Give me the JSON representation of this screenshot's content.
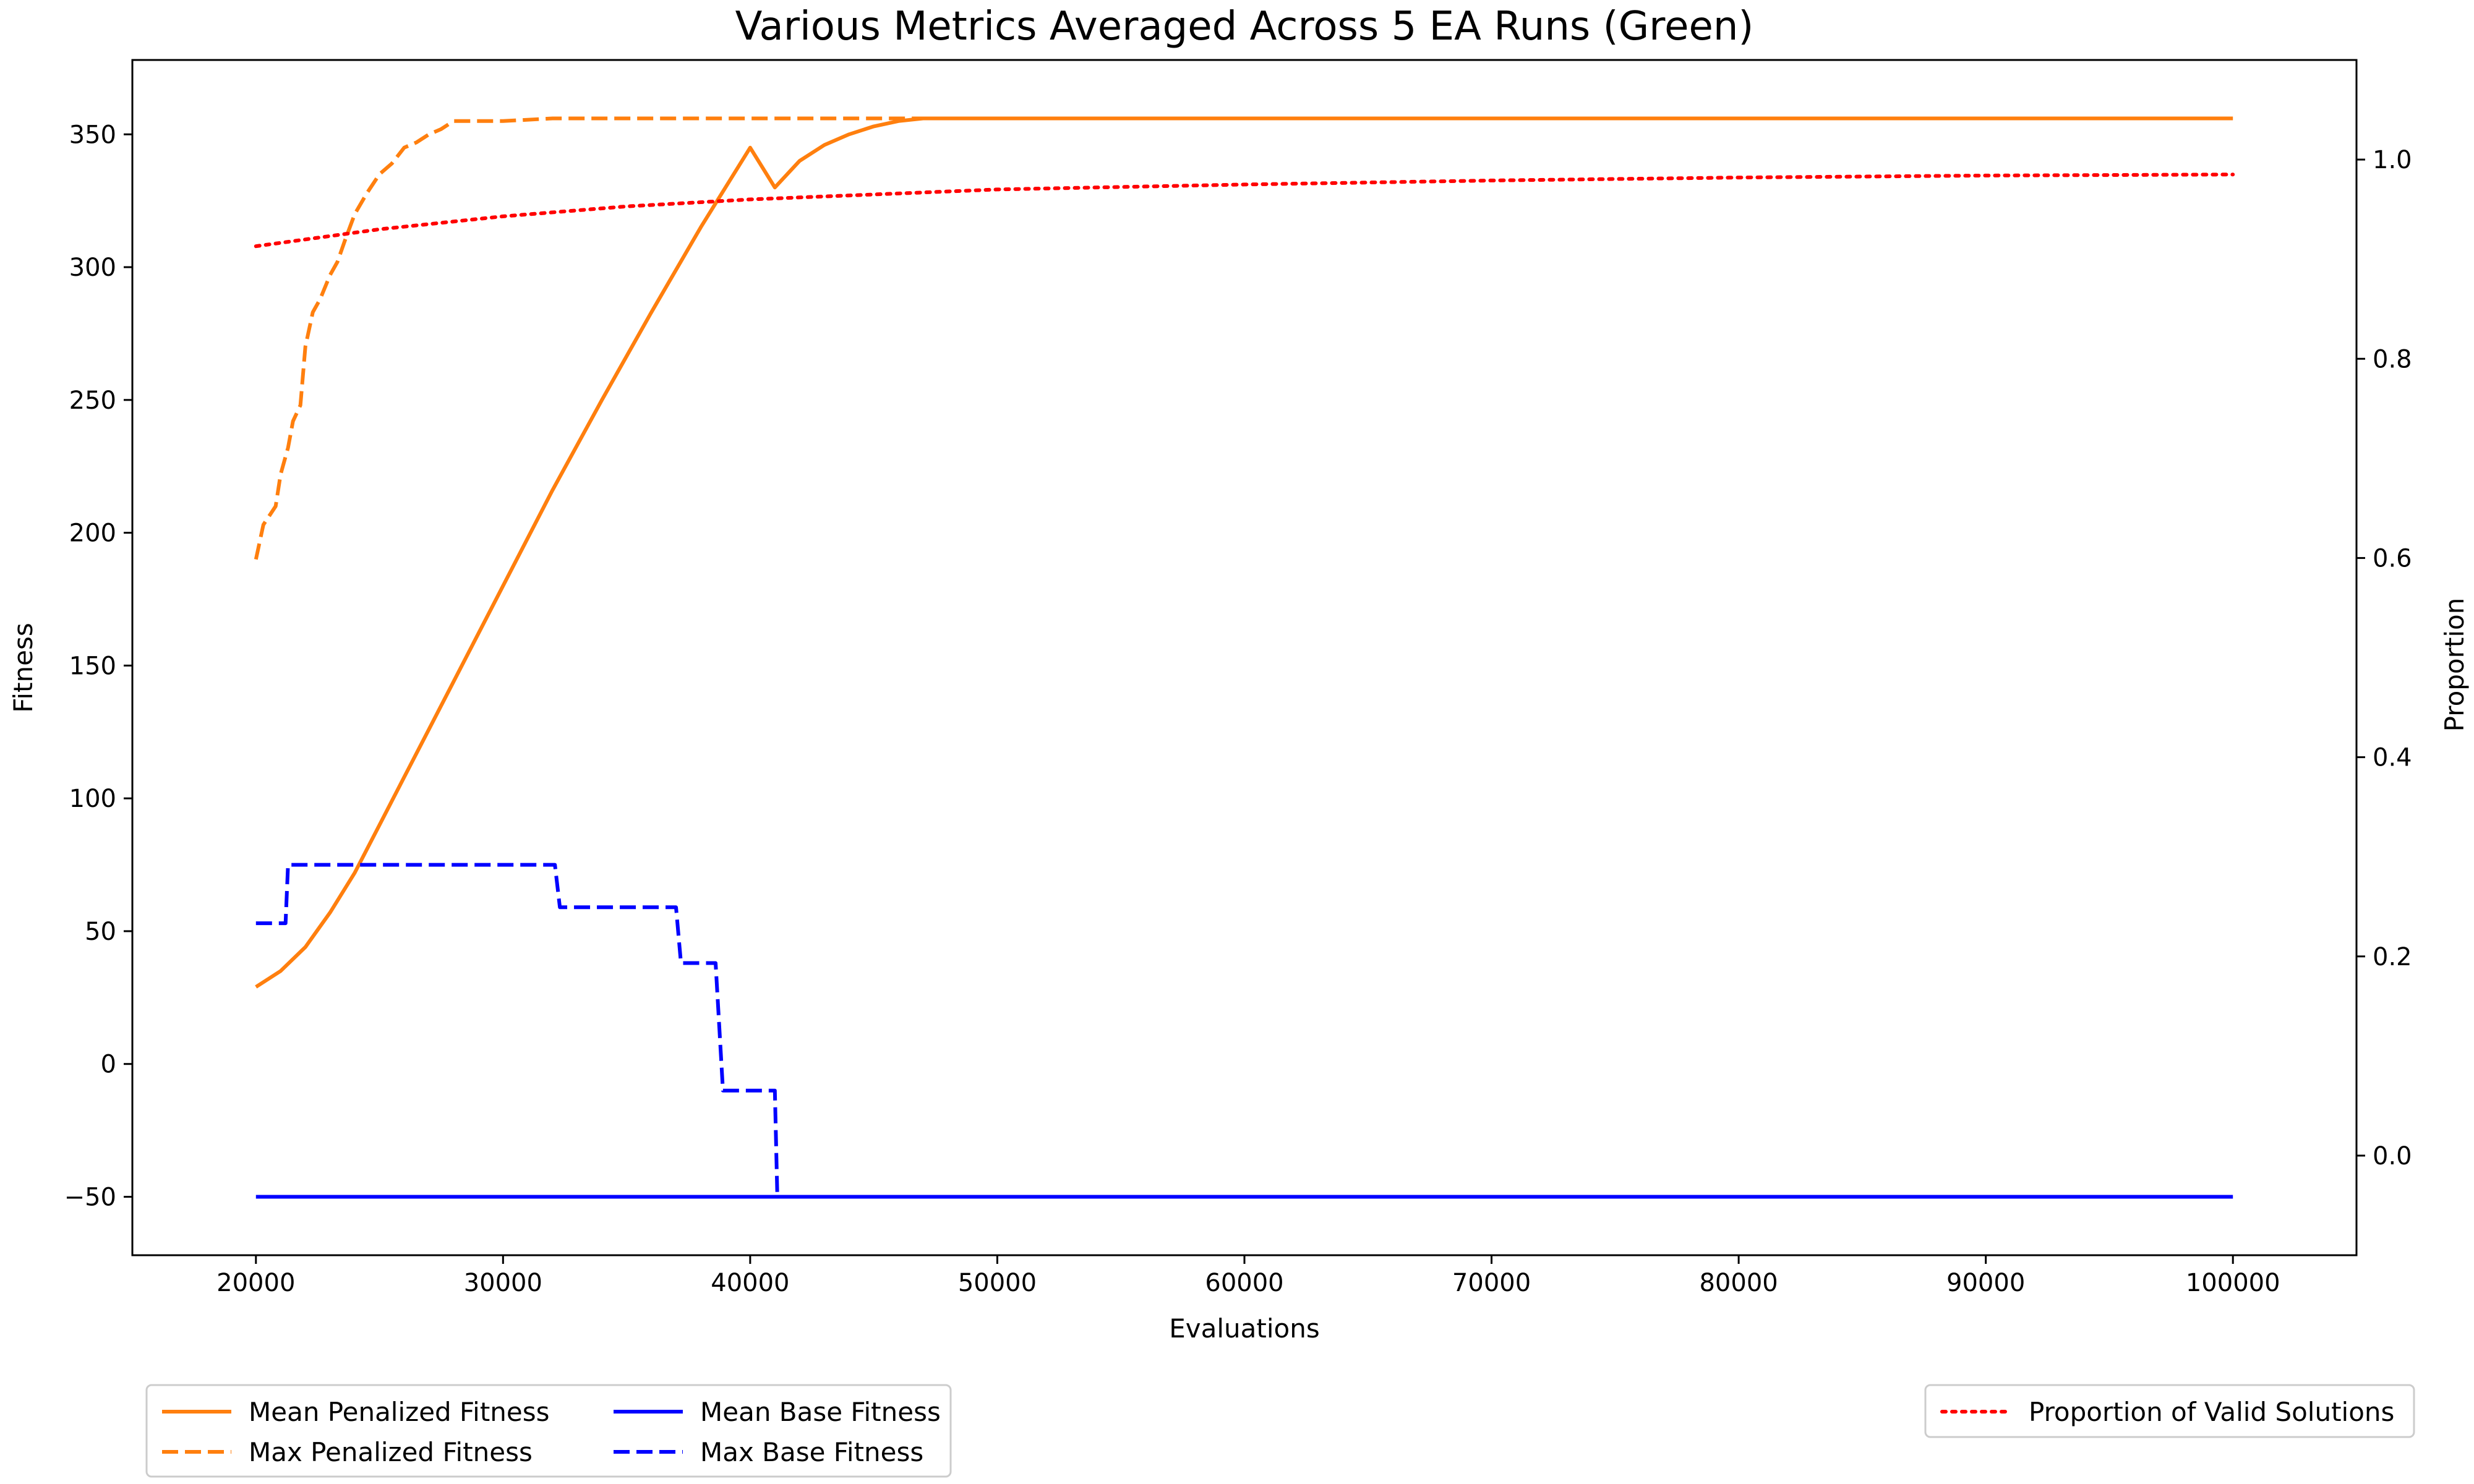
{
  "chart_data": {
    "type": "line",
    "title": "Various Metrics Averaged Across 5 EA Runs (Green)",
    "xlabel": "Evaluations",
    "ylabel": "Fitness",
    "y2label": "Proportion",
    "xlim": [
      15000,
      105000
    ],
    "ylim": [
      -72,
      378
    ],
    "y2lim": [
      -0.1,
      1.1
    ],
    "xticks": [
      20000,
      30000,
      40000,
      50000,
      60000,
      70000,
      80000,
      90000,
      100000
    ],
    "yticks": [
      -50,
      0,
      50,
      100,
      150,
      200,
      250,
      300,
      350
    ],
    "y2ticks": [
      0.0,
      0.2,
      0.4,
      0.6,
      0.8,
      1.0
    ],
    "xtick_labels": [
      "20000",
      "30000",
      "40000",
      "50000",
      "60000",
      "70000",
      "80000",
      "90000",
      "100000"
    ],
    "ytick_labels": [
      "−50",
      "0",
      "50",
      "100",
      "150",
      "200",
      "250",
      "300",
      "350"
    ],
    "y2tick_labels": [
      "0.0",
      "0.2",
      "0.4",
      "0.6",
      "0.8",
      "1.0"
    ],
    "grid": false,
    "series": [
      {
        "name": "Mean Penalized Fitness",
        "axis": "left",
        "color": "#ff7f0e",
        "style": "solid",
        "x": [
          20000,
          21000,
          22000,
          23000,
          24000,
          25000,
          26000,
          27000,
          28000,
          30000,
          32000,
          34000,
          36000,
          38000,
          40000,
          41000,
          42000,
          43000,
          44000,
          45000,
          46000,
          47000,
          48000,
          50000,
          60000,
          70000,
          80000,
          90000,
          100000
        ],
        "y": [
          29,
          35,
          44,
          57,
          72,
          90,
          108,
          126,
          144,
          180,
          216,
          250,
          283,
          315,
          345,
          330,
          340,
          346,
          350,
          353,
          355,
          356,
          356,
          356,
          356,
          356,
          356,
          356,
          356
        ]
      },
      {
        "name": "Max Penalized Fitness",
        "axis": "left",
        "color": "#ff7f0e",
        "style": "dashed",
        "x": [
          20000,
          20300,
          20800,
          21000,
          21300,
          21500,
          21800,
          22000,
          22300,
          22600,
          23000,
          23300,
          23600,
          24000,
          24500,
          25000,
          25500,
          26000,
          26500,
          27000,
          27500,
          28000,
          29000,
          30000,
          32000,
          35000,
          40000,
          45000,
          49000
        ],
        "y": [
          190,
          203,
          210,
          222,
          232,
          242,
          248,
          270,
          283,
          288,
          297,
          302,
          310,
          320,
          328,
          335,
          339,
          345,
          347,
          350,
          352,
          355,
          355,
          355,
          356,
          356,
          356,
          356,
          356
        ]
      },
      {
        "name": "Mean Base Fitness",
        "axis": "left",
        "color": "#0000ff",
        "style": "solid",
        "x": [
          20000,
          100000
        ],
        "y": [
          -50,
          -50
        ]
      },
      {
        "name": "Max Base Fitness",
        "axis": "left",
        "color": "#0000ff",
        "style": "dashed",
        "x": [
          20000,
          21200,
          21300,
          32100,
          32300,
          37000,
          37200,
          38600,
          38900,
          41000,
          41100,
          42000
        ],
        "y": [
          53,
          53,
          75,
          75,
          59,
          59,
          38,
          38,
          -10,
          -10,
          -50,
          -50
        ]
      },
      {
        "name": "Proportion of Valid Solutions",
        "axis": "right",
        "color": "#ff0000",
        "style": "dotted",
        "x": [
          20000,
          25000,
          30000,
          35000,
          40000,
          45000,
          50000,
          60000,
          70000,
          80000,
          90000,
          100000
        ],
        "y": [
          0.913,
          0.93,
          0.943,
          0.953,
          0.96,
          0.965,
          0.97,
          0.975,
          0.979,
          0.982,
          0.984,
          0.985
        ]
      }
    ],
    "legend_left": {
      "placement": "below-left",
      "columns": [
        [
          "Mean Penalized Fitness",
          "Max Penalized Fitness"
        ],
        [
          "Mean Base Fitness",
          "Max Base Fitness"
        ]
      ]
    },
    "legend_right": {
      "placement": "below-right",
      "entries": [
        "Proportion of Valid Solutions"
      ]
    }
  }
}
